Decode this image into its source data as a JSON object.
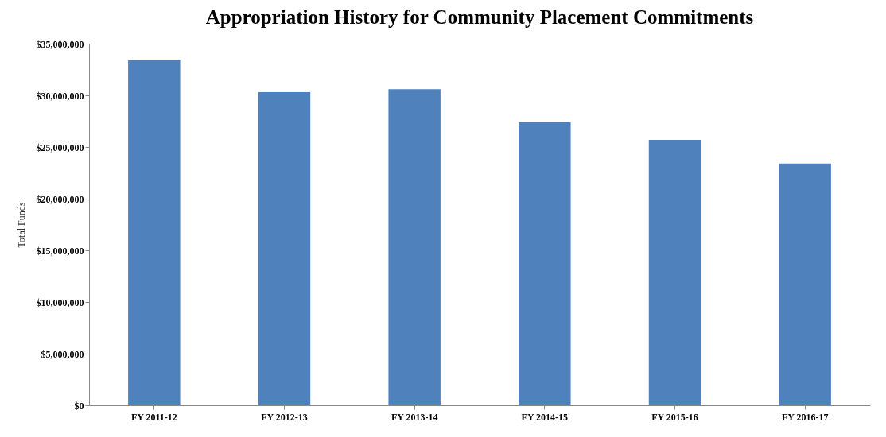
{
  "chart_data": {
    "type": "bar",
    "title": "Appropriation History for Community Placement Commitments",
    "ylabel": "Total Funds",
    "categories": [
      "FY 2011-12",
      "FY 2012-13",
      "FY 2013-14",
      "FY 2014-15",
      "FY 2015-16",
      "FY 2016-17"
    ],
    "values": [
      33400000,
      30300000,
      30600000,
      27400000,
      25700000,
      23400000
    ],
    "color": "#4f81bd",
    "ylim": [
      0,
      35000000
    ],
    "yticks": [
      {
        "value": 0,
        "label": "$0"
      },
      {
        "value": 5000000,
        "label": "$5,000,000"
      },
      {
        "value": 10000000,
        "label": "$10,000,000"
      },
      {
        "value": 15000000,
        "label": "$15,000,000"
      },
      {
        "value": 20000000,
        "label": "$20,000,000"
      },
      {
        "value": 25000000,
        "label": "$25,000,000"
      },
      {
        "value": 30000000,
        "label": "$30,000,000"
      },
      {
        "value": 35000000,
        "label": "$35,000,000"
      }
    ],
    "grid": false
  }
}
